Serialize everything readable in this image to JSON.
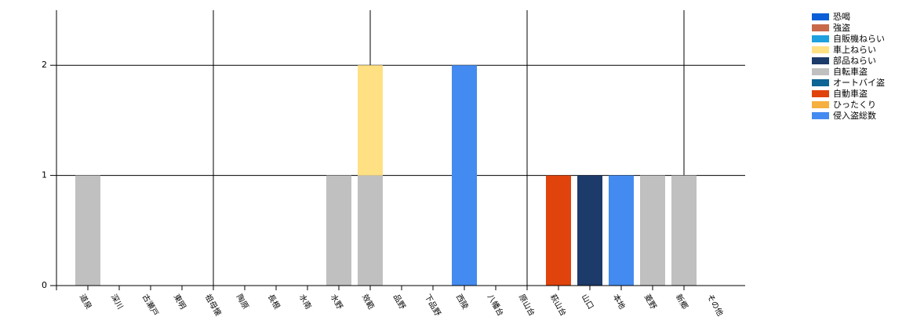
{
  "chart_data": {
    "type": "bar",
    "stacked": true,
    "categories": [
      "道泉",
      "深川",
      "古瀬戸",
      "東明",
      "祖母懐",
      "陶原",
      "長根",
      "水南",
      "水野",
      "效範",
      "品野",
      "下品野",
      "西陵",
      "八幡台",
      "原山台",
      "萩山台",
      "山口",
      "本地",
      "菱野",
      "新郷",
      "その他"
    ],
    "series": [
      {
        "name": "恐喝",
        "color": "#0a5fd6",
        "values": [
          0,
          0,
          0,
          0,
          0,
          0,
          0,
          0,
          0,
          0,
          0,
          0,
          0,
          0,
          0,
          0,
          0,
          0,
          0,
          0,
          0
        ]
      },
      {
        "name": "強盗",
        "color": "#c8694a",
        "values": [
          0,
          0,
          0,
          0,
          0,
          0,
          0,
          0,
          0,
          0,
          0,
          0,
          0,
          0,
          0,
          0,
          0,
          0,
          0,
          0,
          0
        ]
      },
      {
        "name": "自販機ねらい",
        "color": "#1ea1de",
        "values": [
          0,
          0,
          0,
          0,
          0,
          0,
          0,
          0,
          0,
          0,
          0,
          0,
          0,
          0,
          0,
          0,
          0,
          0,
          0,
          0,
          0
        ]
      },
      {
        "name": "車上ねらい",
        "color": "#ffe083",
        "values": [
          0,
          0,
          0,
          0,
          0,
          0,
          0,
          0,
          0,
          1,
          0,
          0,
          0,
          0,
          0,
          0,
          0,
          0,
          0,
          0,
          0
        ]
      },
      {
        "name": "部品ねらい",
        "color": "#1c3a6a",
        "values": [
          0,
          0,
          0,
          0,
          0,
          0,
          0,
          0,
          0,
          0,
          0,
          0,
          0,
          0,
          0,
          0,
          1,
          0,
          0,
          0,
          0
        ]
      },
      {
        "name": "自転車盗",
        "color": "#c0c0c0",
        "values": [
          1,
          0,
          0,
          0,
          0,
          0,
          0,
          0,
          1,
          1,
          0,
          0,
          0,
          0,
          0,
          0,
          0,
          0,
          1,
          1,
          0
        ]
      },
      {
        "name": "オートバイ盗",
        "color": "#0e6494",
        "values": [
          0,
          0,
          0,
          0,
          0,
          0,
          0,
          0,
          0,
          0,
          0,
          0,
          0,
          0,
          0,
          0,
          0,
          0,
          0,
          0,
          0
        ]
      },
      {
        "name": "自動車盗",
        "color": "#e0430c",
        "values": [
          0,
          0,
          0,
          0,
          0,
          0,
          0,
          0,
          0,
          0,
          0,
          0,
          0,
          0,
          0,
          1,
          0,
          0,
          0,
          0,
          0
        ]
      },
      {
        "name": "ひったくり",
        "color": "#f5b03f",
        "values": [
          0,
          0,
          0,
          0,
          0,
          0,
          0,
          0,
          0,
          0,
          0,
          0,
          0,
          0,
          0,
          0,
          0,
          0,
          0,
          0,
          0
        ]
      },
      {
        "name": "侵入盗総数",
        "color": "#438bf0",
        "values": [
          0,
          0,
          0,
          0,
          0,
          0,
          0,
          0,
          0,
          0,
          0,
          0,
          2,
          0,
          0,
          0,
          0,
          1,
          0,
          0,
          0
        ]
      }
    ],
    "ylim": [
      0,
      2.5
    ],
    "yticks": [
      0,
      1,
      2
    ],
    "grid": true,
    "legend": "top-right"
  }
}
